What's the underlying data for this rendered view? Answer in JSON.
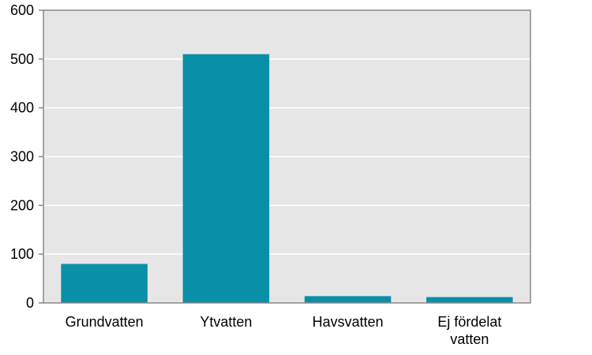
{
  "chart_data": {
    "type": "bar",
    "categories": [
      "Grundvatten",
      "Ytvatten",
      "Havsvatten",
      "Ej fördelat vatten"
    ],
    "category_label_lines": [
      [
        "Grundvatten"
      ],
      [
        "Ytvatten"
      ],
      [
        "Havsvatten"
      ],
      [
        "Ej fördelat",
        "vatten"
      ]
    ],
    "values": [
      80,
      510,
      14,
      12
    ],
    "ylim": [
      0,
      600
    ],
    "yticks": [
      0,
      100,
      200,
      300,
      400,
      500,
      600
    ],
    "grid": true,
    "legend": "none",
    "title": "",
    "xlabel": "",
    "ylabel": ""
  },
  "colors": {
    "bar": "#0a8fa8",
    "plot_background": "#e6e6e6",
    "gridline": "#ffffff",
    "axis": "#888888"
  }
}
